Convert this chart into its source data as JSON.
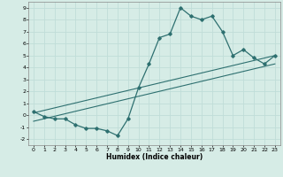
{
  "x": [
    0,
    1,
    2,
    3,
    4,
    5,
    6,
    7,
    8,
    9,
    10,
    11,
    12,
    13,
    14,
    15,
    16,
    17,
    18,
    19,
    20,
    21,
    22,
    23
  ],
  "y": [
    0.3,
    -0.1,
    -0.3,
    -0.3,
    -0.8,
    -1.1,
    -1.1,
    -1.3,
    -1.7,
    -0.3,
    2.3,
    4.3,
    6.5,
    6.8,
    9.0,
    8.3,
    8.0,
    8.3,
    7.0,
    5.0,
    5.5,
    4.8,
    4.3,
    5.0
  ],
  "trend1_x": [
    0,
    23
  ],
  "trend1_y": [
    0.2,
    5.0
  ],
  "trend2_x": [
    0,
    23
  ],
  "trend2_y": [
    -0.5,
    4.3
  ],
  "line_color": "#2e7070",
  "bg_color": "#d6ece6",
  "grid_color": "#c0ddd8",
  "xlabel": "Humidex (Indice chaleur)",
  "ylim": [
    -2.5,
    9.5
  ],
  "xlim": [
    -0.5,
    23.5
  ],
  "yticks": [
    -2,
    -1,
    0,
    1,
    2,
    3,
    4,
    5,
    6,
    7,
    8,
    9
  ],
  "xticks": [
    0,
    1,
    2,
    3,
    4,
    5,
    6,
    7,
    8,
    9,
    10,
    11,
    12,
    13,
    14,
    15,
    16,
    17,
    18,
    19,
    20,
    21,
    22,
    23
  ]
}
